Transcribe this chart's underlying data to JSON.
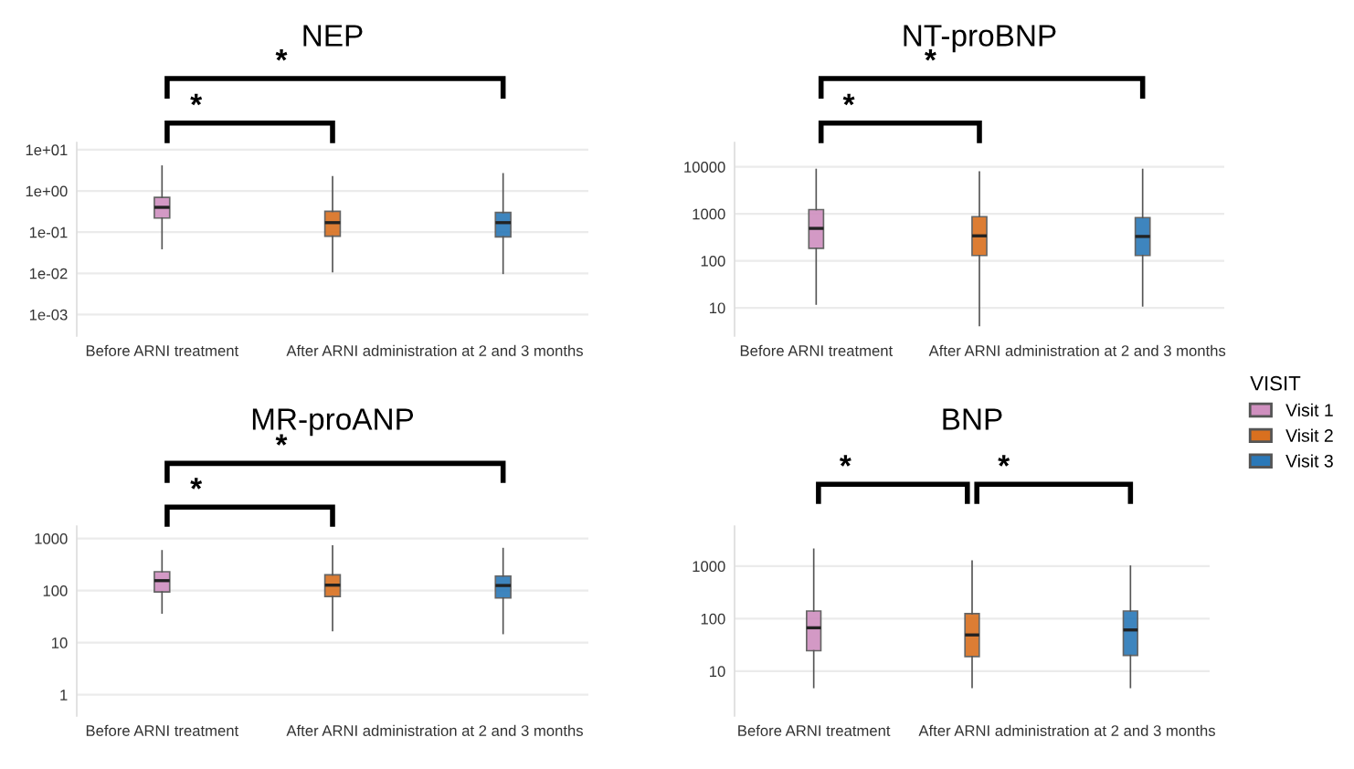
{
  "chart_data": [
    {
      "type": "box",
      "title": "NEP",
      "categories": [
        "Before ARNI treatment",
        null,
        null
      ],
      "annotations": [
        "After ARNI administration at 2 and 3 months",
        "*",
        "*"
      ],
      "log": "y",
      "grid": "y",
      "ylim": [
        0.0003,
        15
      ],
      "yticks": [
        {
          "value": 0.001,
          "label": "1e-03"
        },
        {
          "value": 0.01,
          "label": "1e-02"
        },
        {
          "value": 0.1,
          "label": "1e-01"
        },
        {
          "value": 1,
          "label": "1e+00"
        },
        {
          "value": 10,
          "label": "1e+01"
        }
      ],
      "series": [
        {
          "color": "#cf8fbf",
          "boxes": [
            {
              "low": 0.04,
              "q1": 0.22,
              "median": 0.4,
              "q3": 0.7,
              "high": 4
            },
            null,
            null
          ]
        },
        {
          "color": "#d9701f",
          "boxes": [
            null,
            {
              "low": 0.011,
              "q1": 0.08,
              "median": 0.17,
              "q3": 0.32,
              "high": 2.2
            },
            null
          ]
        },
        {
          "color": "#2a78b8",
          "boxes": [
            null,
            null,
            {
              "low": 0.01,
              "q1": 0.077,
              "median": 0.17,
              "q3": 0.3,
              "high": 2.6
            }
          ]
        }
      ]
    },
    {
      "type": "box",
      "title": "NT-proBNP",
      "categories": [
        "Before ARNI treatment",
        null,
        null
      ],
      "annotations": [
        "After ARNI administration at 2 and 3 months",
        "*",
        "*"
      ],
      "log": "y",
      "grid": "y",
      "ylim": [
        2.5,
        33000
      ],
      "yticks": [
        10,
        100,
        1000,
        10000
      ],
      "legend": "right",
      "legend_title": "VISIT",
      "series": [
        {
          "name": "Visit 1",
          "color": "#cf8fbf",
          "boxes": [
            {
              "low": 12,
              "q1": 184,
              "median": 490,
              "q3": 1230,
              "high": 8800
            },
            null,
            null
          ]
        },
        {
          "name": "Visit 2",
          "color": "#d9701f",
          "boxes": [
            null,
            {
              "low": 4.2,
              "q1": 130,
              "median": 340,
              "q3": 870,
              "high": 7800
            },
            null
          ]
        },
        {
          "name": "Visit 3",
          "color": "#2a78b8",
          "boxes": [
            null,
            null,
            {
              "low": 11,
              "q1": 130,
              "median": 330,
              "q3": 830,
              "high": 8800
            }
          ]
        }
      ]
    },
    {
      "type": "box",
      "title": "MR-proANP",
      "categories": [
        "Before ARNI treatment",
        null,
        null
      ],
      "annotations": [
        "After ARNI administration at 2 and 3 months",
        "*",
        "*"
      ],
      "log": "y",
      "grid": "y",
      "ylim": [
        0.39,
        1730
      ],
      "yticks": [
        1,
        10,
        100,
        1000
      ],
      "series": [
        {
          "color": "#cf8fbf",
          "boxes": [
            {
              "low": 37,
              "q1": 94,
              "median": 155,
              "q3": 230,
              "high": 580
            },
            null,
            null
          ]
        },
        {
          "color": "#d9701f",
          "boxes": [
            null,
            {
              "low": 17,
              "q1": 77,
              "median": 127,
              "q3": 200,
              "high": 720
            },
            null
          ]
        },
        {
          "color": "#2a78b8",
          "boxes": [
            null,
            null,
            {
              "low": 15,
              "q1": 72,
              "median": 125,
              "q3": 190,
              "high": 640
            }
          ]
        }
      ]
    },
    {
      "type": "box",
      "title": "BNP",
      "categories": [
        "Before ARNI treatment",
        null,
        null
      ],
      "annotations": [
        "After ARNI administration at 2 and 3 months",
        "*",
        "*"
      ],
      "log": "y",
      "grid": "y",
      "ylim": [
        1.4,
        5800
      ],
      "yticks": [
        10,
        100,
        1000
      ],
      "series": [
        {
          "color": "#cf8fbf",
          "boxes": [
            {
              "low": 4.9,
              "q1": 24.5,
              "median": 67,
              "q3": 140,
              "high": 2100
            },
            null,
            null
          ]
        },
        {
          "color": "#d9701f",
          "boxes": [
            null,
            {
              "low": 4.9,
              "q1": 19,
              "median": 49,
              "q3": 125,
              "high": 1250
            },
            null
          ]
        },
        {
          "color": "#2a78b8",
          "boxes": [
            null,
            null,
            {
              "low": 4.9,
              "q1": 20,
              "median": 61,
              "q3": 140,
              "high": 1000
            }
          ]
        }
      ]
    }
  ]
}
